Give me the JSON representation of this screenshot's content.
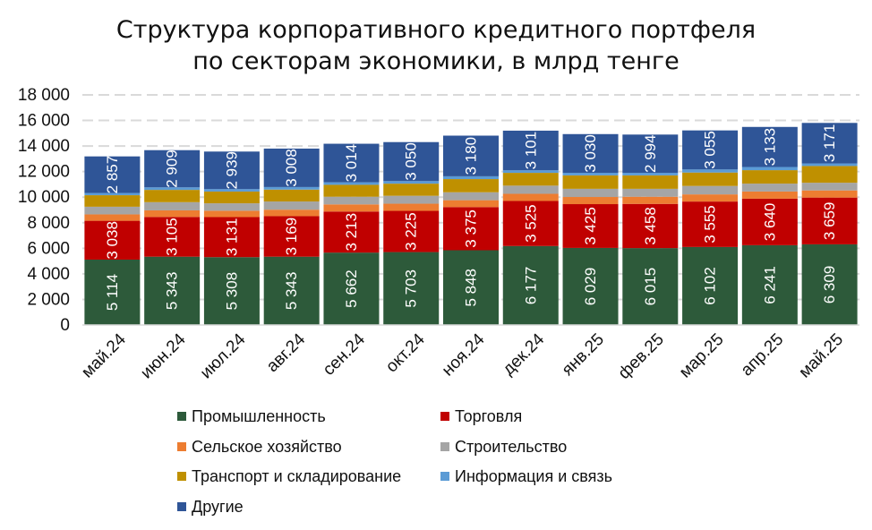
{
  "chart_data": {
    "type": "bar",
    "stacked": true,
    "title_lines": [
      "Структура корпоративного кредитного портфеля",
      "по секторам экономики, в млрд тенге"
    ],
    "categories": [
      "май.24",
      "июн.24",
      "июл.24",
      "авг.24",
      "сен.24",
      "окт.24",
      "ноя.24",
      "дек.24",
      "янв.25",
      "фев.25",
      "мар.25",
      "апр.25",
      "май.25"
    ],
    "ylim": [
      0,
      18000
    ],
    "yticks": [
      0,
      2000,
      4000,
      6000,
      8000,
      10000,
      12000,
      14000,
      16000,
      18000
    ],
    "ytick_labels": [
      "0",
      "2 000",
      "4 000",
      "6 000",
      "8 000",
      "10 000",
      "12 000",
      "14 000",
      "16 000",
      "18 000"
    ],
    "grid": true,
    "legend_position": "bottom",
    "series": [
      {
        "name": "Промышленность",
        "color": "#2d5a3a",
        "label_values": true,
        "values": [
          5114,
          5343,
          5308,
          5343,
          5662,
          5703,
          5848,
          6177,
          6029,
          6015,
          6102,
          6241,
          6309
        ],
        "labels": [
          "5 114",
          "5 343",
          "5 308",
          "5 343",
          "5 662",
          "5 703",
          "5 848",
          "6 177",
          "6 029",
          "6 015",
          "6 102",
          "6 241",
          "6 309"
        ]
      },
      {
        "name": "Торговля",
        "color": "#c00000",
        "label_values": true,
        "values": [
          3038,
          3105,
          3131,
          3169,
          3213,
          3225,
          3375,
          3525,
          3425,
          3458,
          3555,
          3640,
          3659
        ],
        "labels": [
          "3 038",
          "3 105",
          "3 131",
          "3 169",
          "3 213",
          "3 225",
          "3 375",
          "3 525",
          "3 425",
          "3 458",
          "3 555",
          "3 640",
          "3 659"
        ]
      },
      {
        "name": "Сельское хозяйство",
        "color": "#ed7d31",
        "label_values": false,
        "values": [
          500,
          520,
          500,
          510,
          560,
          560,
          540,
          560,
          560,
          560,
          560,
          560,
          560
        ]
      },
      {
        "name": "Строительство",
        "color": "#a5a5a5",
        "label_values": false,
        "values": [
          600,
          640,
          580,
          640,
          600,
          620,
          620,
          640,
          640,
          620,
          660,
          620,
          600
        ]
      },
      {
        "name": "Транспорт и складирование",
        "color": "#bf9000",
        "label_values": false,
        "values": [
          900,
          960,
          920,
          930,
          930,
          950,
          1030,
          1000,
          1050,
          1050,
          1050,
          1050,
          1310
        ]
      },
      {
        "name": "Информация и связь",
        "color": "#5b9bd5",
        "label_values": false,
        "values": [
          180,
          200,
          190,
          200,
          200,
          200,
          220,
          200,
          200,
          200,
          240,
          250,
          200
        ]
      },
      {
        "name": "Другие",
        "color": "#2f5597",
        "label_values": true,
        "values": [
          2857,
          2909,
          2939,
          3008,
          3014,
          3050,
          3180,
          3101,
          3030,
          2994,
          3055,
          3133,
          3171
        ],
        "labels": [
          "2 857",
          "2 909",
          "2 939",
          "3 008",
          "3 014",
          "3 050",
          "3 180",
          "3 101",
          "3 030",
          "2 994",
          "3 055",
          "3 133",
          "3 171"
        ]
      }
    ]
  }
}
